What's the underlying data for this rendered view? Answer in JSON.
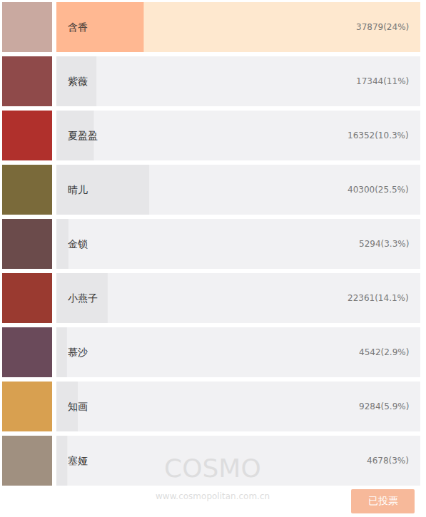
{
  "chart_data": {
    "type": "bar",
    "orientation": "horizontal",
    "categories": [
      "含香",
      "紫薇",
      "夏盈盈",
      "晴儿",
      "金锁",
      "小燕子",
      "慕沙",
      "知画",
      "塞娅"
    ],
    "values": [
      24,
      11,
      10.3,
      25.5,
      3.3,
      14.1,
      2.9,
      5.9,
      3
    ],
    "value_labels": [
      "37879(24%)",
      "17344(11%)",
      "16352(10.3%)",
      "40300(25.5%)",
      "5294(3.3%)",
      "22361(14.1%)",
      "4542(2.9%)",
      "9284(5.9%)",
      "4678(3%)"
    ],
    "colors": [
      "#ffb892",
      "#e6e6e8",
      "#e6e6e8",
      "#e6e6e8",
      "#e6e6e8",
      "#e6e6e8",
      "#e6e6e8",
      "#e6e6e8",
      "#e6e6e8"
    ],
    "xlim": [
      0,
      100
    ],
    "tick_labels": false,
    "data_labels": true
  },
  "button": {
    "text": "已投票"
  },
  "watermark": {
    "logo": "COSMO",
    "url": "www.cosmopolitan.com.cn"
  }
}
